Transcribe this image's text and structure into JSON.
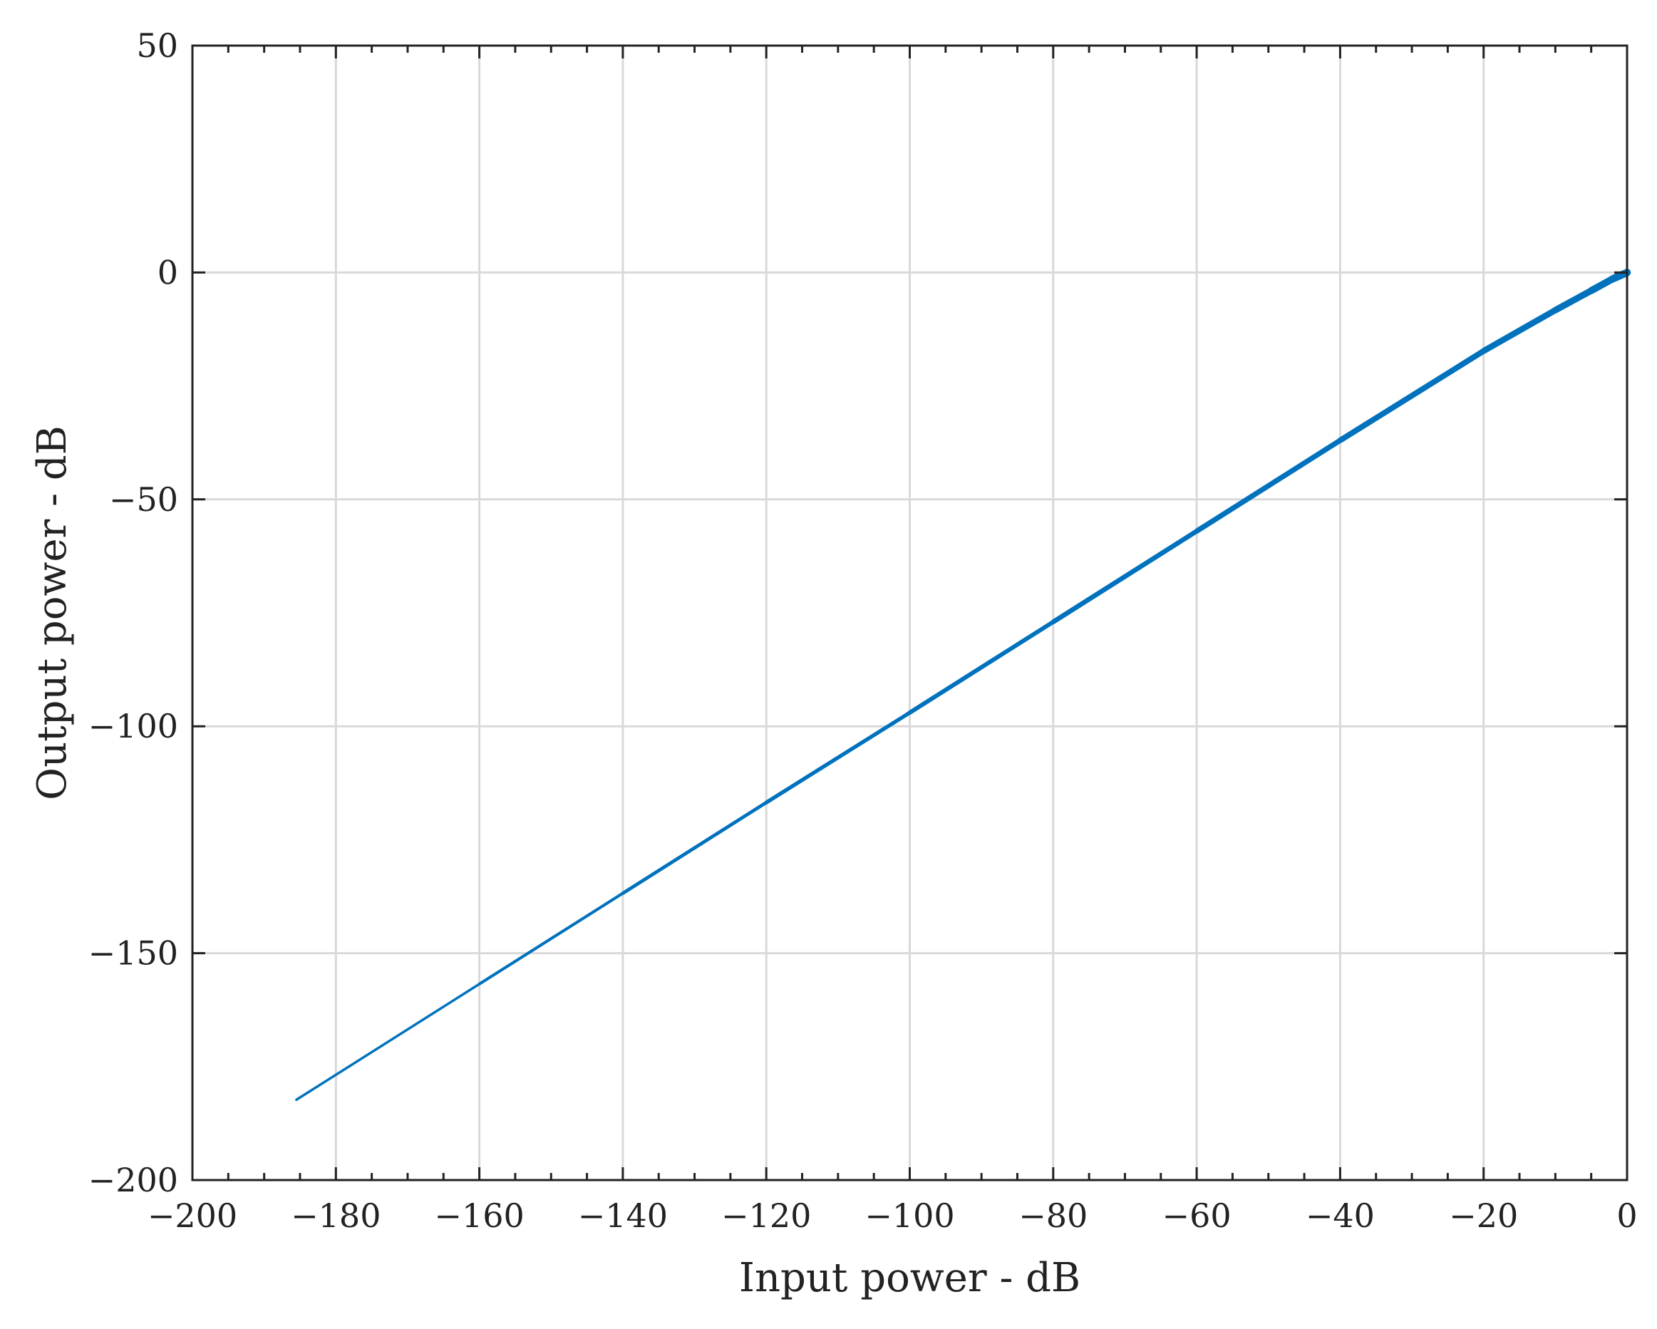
{
  "chart_data": {
    "type": "line",
    "title": "",
    "xlabel": "Input power - dB",
    "ylabel": "Output power - dB",
    "xlim": [
      -200,
      0
    ],
    "ylim": [
      -200,
      50
    ],
    "x_ticks": [
      -200,
      -180,
      -160,
      -140,
      -120,
      -100,
      -80,
      -60,
      -40,
      -20,
      0
    ],
    "y_ticks": [
      -200,
      -150,
      -100,
      -50,
      0,
      50
    ],
    "x_tick_labels": [
      "−200",
      "−180",
      "−160",
      "−140",
      "−120",
      "−100",
      "−80",
      "−60",
      "−40",
      "−20",
      "0"
    ],
    "y_tick_labels": [
      "−200",
      "−150",
      "−100",
      "−50",
      "0",
      "50"
    ],
    "grid": true,
    "legend": "none",
    "series": [
      {
        "color": "#0072bd",
        "x": [
          -185.5,
          -160,
          -140,
          -120,
          -100,
          -80,
          -60,
          -40,
          -20,
          -10,
          -5,
          -2,
          0
        ],
        "y": [
          -182.3,
          -156.8,
          -136.8,
          -116.8,
          -97,
          -77,
          -57,
          -37,
          -17.3,
          -8.3,
          -4,
          -1.4,
          0
        ]
      }
    ]
  }
}
